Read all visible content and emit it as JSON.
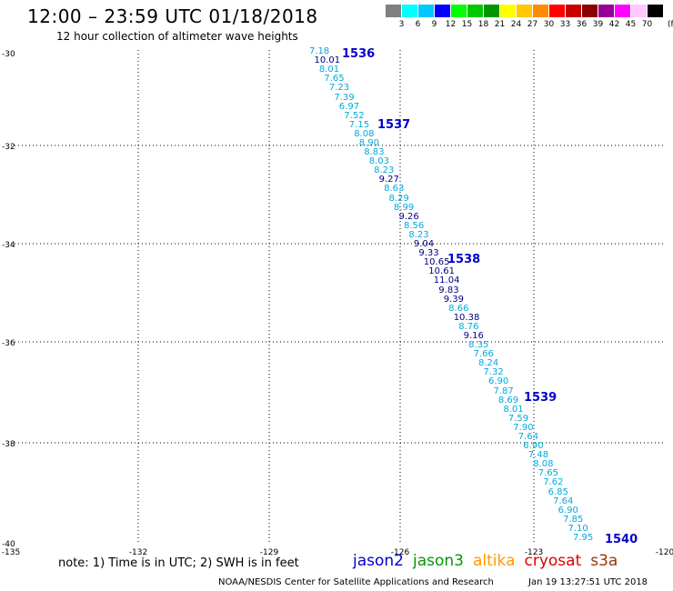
{
  "header": {
    "title": "12:00 – 23:59 UTC 01/18/2018",
    "subtitle": "12 hour collection of altimeter wave heights"
  },
  "color_scale": {
    "unit": "(ft)",
    "bins": [
      {
        "label": "3",
        "color": "#808080"
      },
      {
        "label": "6",
        "color": "#00ffff"
      },
      {
        "label": "9",
        "color": "#00c8ff"
      },
      {
        "label": "12",
        "color": "#0000ff"
      },
      {
        "label": "15",
        "color": "#00ff00"
      },
      {
        "label": "18",
        "color": "#00c800"
      },
      {
        "label": "21",
        "color": "#009600"
      },
      {
        "label": "24",
        "color": "#ffff00"
      },
      {
        "label": "27",
        "color": "#ffc800"
      },
      {
        "label": "30",
        "color": "#ff8c00"
      },
      {
        "label": "33",
        "color": "#ff0000"
      },
      {
        "label": "36",
        "color": "#c80000"
      },
      {
        "label": "39",
        "color": "#8b0000"
      },
      {
        "label": "42",
        "color": "#960096"
      },
      {
        "label": "45",
        "color": "#ff00ff"
      },
      {
        "label": "70",
        "color": "#ffc8ff"
      },
      {
        "label": "",
        "color": "#000000"
      }
    ]
  },
  "axes": {
    "x_ticks": [
      "-135",
      "-132",
      "-129",
      "-126",
      "-123",
      "-120"
    ],
    "y_ticks": [
      "-30",
      "-32",
      "-34",
      "-36",
      "-38",
      "-40"
    ]
  },
  "track": {
    "light_color": "#00aadd",
    "dark_color": "#000080",
    "values": [
      {
        "v": "7.18",
        "d": false
      },
      {
        "v": "10.01",
        "d": true
      },
      {
        "v": "8.01",
        "d": false
      },
      {
        "v": "7.65",
        "d": false
      },
      {
        "v": "7.23",
        "d": false
      },
      {
        "v": "7.39",
        "d": false
      },
      {
        "v": "6.97",
        "d": false
      },
      {
        "v": "7.52",
        "d": false
      },
      {
        "v": "7.15",
        "d": false
      },
      {
        "v": "8.08",
        "d": false
      },
      {
        "v": "8.90",
        "d": false
      },
      {
        "v": "8.83",
        "d": false
      },
      {
        "v": "8.03",
        "d": false
      },
      {
        "v": "8.23",
        "d": false
      },
      {
        "v": "9.27",
        "d": true
      },
      {
        "v": "8.63",
        "d": false
      },
      {
        "v": "8.29",
        "d": false
      },
      {
        "v": "8.99",
        "d": false
      },
      {
        "v": "9.26",
        "d": true
      },
      {
        "v": "8.56",
        "d": false
      },
      {
        "v": "8.23",
        "d": false
      },
      {
        "v": "9.04",
        "d": true
      },
      {
        "v": "9.33",
        "d": true
      },
      {
        "v": "10.65",
        "d": true
      },
      {
        "v": "10.61",
        "d": true
      },
      {
        "v": "11.04",
        "d": true
      },
      {
        "v": "9.83",
        "d": true
      },
      {
        "v": "9.39",
        "d": true
      },
      {
        "v": "8.66",
        "d": false
      },
      {
        "v": "10.38",
        "d": true
      },
      {
        "v": "8.76",
        "d": false
      },
      {
        "v": "9.16",
        "d": true
      },
      {
        "v": "8.35",
        "d": false
      },
      {
        "v": "7.66",
        "d": false
      },
      {
        "v": "8.24",
        "d": false
      },
      {
        "v": "7.32",
        "d": false
      },
      {
        "v": "6.90",
        "d": false
      },
      {
        "v": "7.87",
        "d": false
      },
      {
        "v": "8.69",
        "d": false
      },
      {
        "v": "8.01",
        "d": false
      },
      {
        "v": "7.59",
        "d": false
      },
      {
        "v": "7.90",
        "d": false
      },
      {
        "v": "7.64",
        "d": false
      },
      {
        "v": "6.90",
        "d": false
      },
      {
        "v": "7.48",
        "d": false
      },
      {
        "v": "8.08",
        "d": false
      },
      {
        "v": "7.65",
        "d": false
      },
      {
        "v": "7.62",
        "d": false
      },
      {
        "v": "6.85",
        "d": false
      },
      {
        "v": "7.64",
        "d": false
      },
      {
        "v": "6.90",
        "d": false
      },
      {
        "v": "7.85",
        "d": false
      },
      {
        "v": "7.10",
        "d": false
      },
      {
        "v": "7.95",
        "d": false
      }
    ]
  },
  "pass_labels": [
    "1536",
    "1537",
    "1538",
    "1539",
    "1540"
  ],
  "footer": {
    "note": "note: 1) Time is in UTC; 2) SWH is in feet",
    "credit": "NOAA/NESDIS Center for Satellite Applications and Research",
    "timestamp": "Jan 19 13:27:51 UTC 2018"
  },
  "satellites": [
    {
      "name": "jason2",
      "color": "#0000cc"
    },
    {
      "name": "jason3",
      "color": "#009900"
    },
    {
      "name": "altika",
      "color": "#ff9900"
    },
    {
      "name": "cryosat",
      "color": "#dd0000"
    },
    {
      "name": "s3a",
      "color": "#993300"
    }
  ]
}
